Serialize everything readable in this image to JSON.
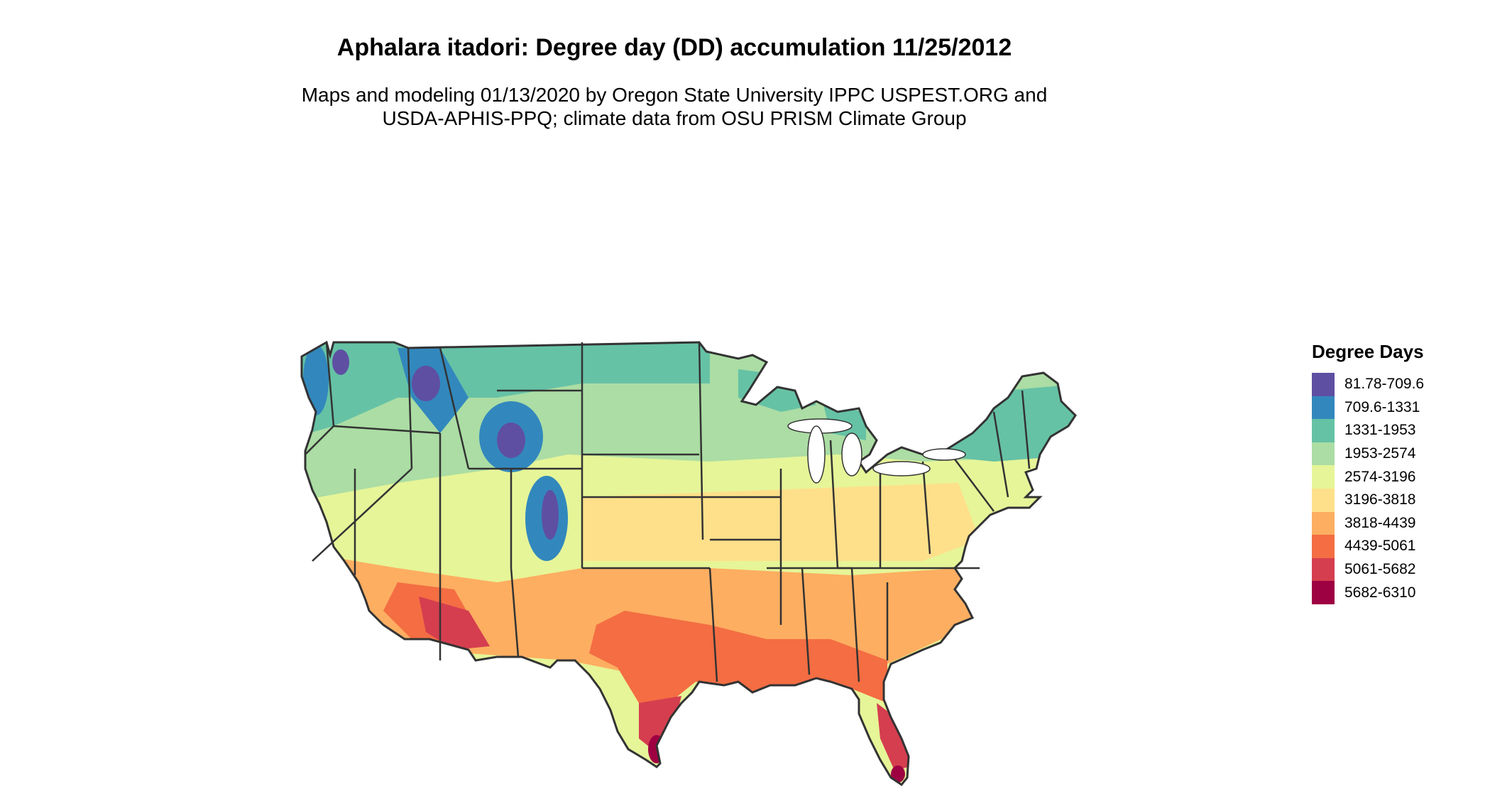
{
  "title": "Aphalara itadori: Degree day (DD) accumulation 11/25/2012",
  "subtitle": {
    "line1": "Maps and modeling 01/13/2020 by Oregon State University IPPC USPEST.ORG and",
    "line2": "USDA-APHIS-PPQ; climate data from OSU PRISM Climate Group"
  },
  "legend": {
    "title": "Degree Days",
    "items": [
      {
        "label": "81.78-709.6",
        "color": "#5e4fa2"
      },
      {
        "label": "709.6-1331",
        "color": "#3288bd"
      },
      {
        "label": "1331-1953",
        "color": "#66c2a5"
      },
      {
        "label": "1953-2574",
        "color": "#abdda4"
      },
      {
        "label": "2574-3196",
        "color": "#e6f598"
      },
      {
        "label": "3196-3818",
        "color": "#fee08b"
      },
      {
        "label": "3818-4439",
        "color": "#fdae61"
      },
      {
        "label": "4439-5061",
        "color": "#f46d43"
      },
      {
        "label": "5061-5682",
        "color": "#d53e4f"
      },
      {
        "label": "5682-6310",
        "color": "#9e0142"
      }
    ]
  },
  "map": {
    "border_color": "#333333"
  }
}
